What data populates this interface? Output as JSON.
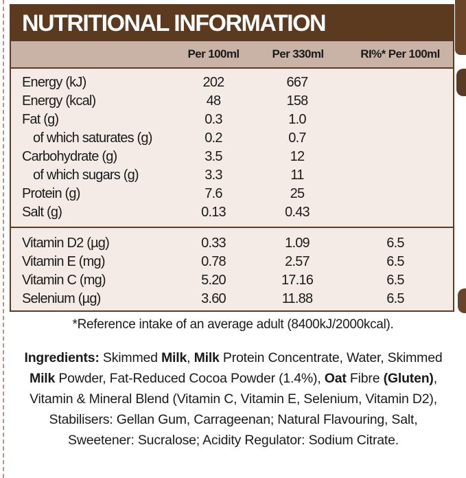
{
  "title": "NUTRITIONAL INFORMATION",
  "columns": [
    "Per 100ml",
    "Per 330ml",
    "RI%* Per 100ml"
  ],
  "macros": [
    {
      "label": "Energy (kJ)",
      "p100": "202",
      "p330": "667",
      "ri": "",
      "indent": false
    },
    {
      "label": "Energy (kcal)",
      "p100": "48",
      "p330": "158",
      "ri": "",
      "indent": false
    },
    {
      "label": "Fat (g)",
      "p100": "0.3",
      "p330": "1.0",
      "ri": "",
      "indent": false
    },
    {
      "label": "of which saturates (g)",
      "p100": "0.2",
      "p330": "0.7",
      "ri": "",
      "indent": true
    },
    {
      "label": "Carbohydrate (g)",
      "p100": "3.5",
      "p330": "12",
      "ri": "",
      "indent": false
    },
    {
      "label": "of which sugars (g)",
      "p100": "3.3",
      "p330": "11",
      "ri": "",
      "indent": true
    },
    {
      "label": "Protein (g)",
      "p100": "7.6",
      "p330": "25",
      "ri": "",
      "indent": false
    },
    {
      "label": "Salt (g)",
      "p100": "0.13",
      "p330": "0.43",
      "ri": "",
      "indent": false
    }
  ],
  "vitamins": [
    {
      "label": "Vitamin D2 (µg)",
      "p100": "0.33",
      "p330": "1.09",
      "ri": "6.5"
    },
    {
      "label": "Vitamin E (mg)",
      "p100": "0.78",
      "p330": "2.57",
      "ri": "6.5"
    },
    {
      "label": "Vitamin C (mg)",
      "p100": "5.20",
      "p330": "17.16",
      "ri": "6.5"
    },
    {
      "label": "Selenium (µg)",
      "p100": "3.60",
      "p330": "11.88",
      "ri": "6.5"
    }
  ],
  "footnote": "*Reference intake of an average adult (8400kJ/2000kcal).",
  "ingredients": [
    {
      "text": "Ingredients:",
      "bold": true
    },
    {
      "text": " Skimmed ",
      "bold": false
    },
    {
      "text": "Milk",
      "bold": true
    },
    {
      "text": ", ",
      "bold": false
    },
    {
      "text": "Milk",
      "bold": true
    },
    {
      "text": " Protein Concentrate, Water, Skimmed ",
      "bold": false
    },
    {
      "text": "Milk",
      "bold": true
    },
    {
      "text": " Powder, Fat-Reduced Cocoa Powder (1.4%), ",
      "bold": false
    },
    {
      "text": "Oat",
      "bold": true
    },
    {
      "text": " Fibre ",
      "bold": false
    },
    {
      "text": "(Gluten)",
      "bold": true
    },
    {
      "text": ", Vitamin & Mineral Blend (Vitamin C, Vitamin E, Selenium, Vitamin D2), Stabilisers: Gellan Gum, Carrageenan; Natural Flavouring, Salt, Sweetener: Sucralose; Acidity Regulator: Sodium Citrate.",
      "bold": false
    }
  ]
}
